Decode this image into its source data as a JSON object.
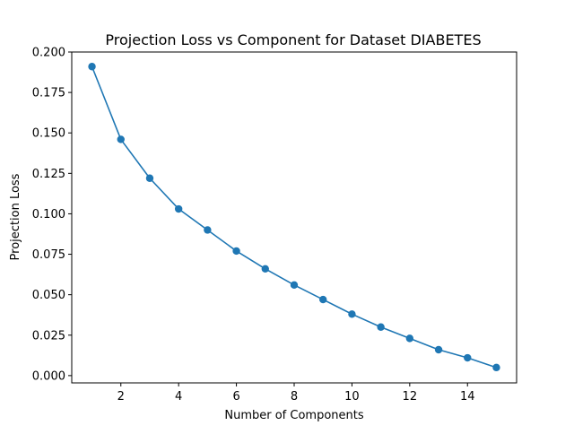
{
  "chart_data": {
    "type": "line",
    "title": "Projection Loss vs Component for Dataset DIABETES",
    "xlabel": "Number of Components",
    "ylabel": "Projection Loss",
    "xlim": [
      0.3,
      15.7
    ],
    "ylim": [
      -0.0045,
      0.2
    ],
    "xticks": [
      2,
      4,
      6,
      8,
      10,
      12,
      14
    ],
    "yticks": [
      0.0,
      0.025,
      0.05,
      0.075,
      0.1,
      0.125,
      0.15,
      0.175,
      0.2
    ],
    "ytick_labels": [
      "0.000",
      "0.025",
      "0.050",
      "0.075",
      "0.100",
      "0.125",
      "0.150",
      "0.175",
      "0.200"
    ],
    "grid": false,
    "legend": "none",
    "series": [
      {
        "color": "#1f77b4",
        "marker": "circle",
        "x": [
          1,
          2,
          3,
          4,
          5,
          6,
          7,
          8,
          9,
          10,
          11,
          12,
          13,
          14,
          15
        ],
        "y": [
          0.191,
          0.146,
          0.122,
          0.103,
          0.09,
          0.077,
          0.066,
          0.056,
          0.047,
          0.038,
          0.03,
          0.023,
          0.016,
          0.011,
          0.005
        ]
      }
    ]
  }
}
